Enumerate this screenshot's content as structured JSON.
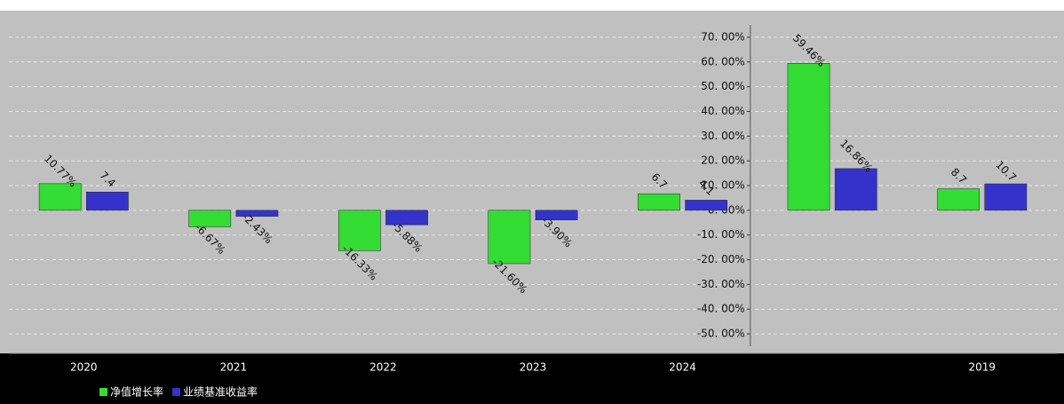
{
  "chart_data": {
    "type": "bar",
    "categories": [
      "2020",
      "2021",
      "2022",
      "2023",
      "2024",
      null,
      "2019"
    ],
    "series": [
      {
        "name": "净值增长率",
        "color": "#33dd33",
        "values": [
          10.77,
          -6.67,
          -16.33,
          -21.6,
          6.7,
          59.46,
          8.7
        ],
        "value_labels": [
          "10.77%",
          "-6.67%",
          "-16.33%",
          "-21.60%",
          "6.7",
          "59.46%",
          "8.7"
        ]
      },
      {
        "name": "业绩基准收益率",
        "color": "#3333cc",
        "values": [
          7.4,
          -2.43,
          -5.88,
          -3.9,
          4.1,
          16.86,
          10.7
        ],
        "value_labels": [
          "7.4",
          "-2.43%",
          "-5.88%",
          "-3.90%",
          "4.1",
          "16.86%",
          "10.7"
        ]
      }
    ],
    "ylim": [
      -55,
      75
    ],
    "yticks": [
      {
        "value": -50,
        "label": "-50. 00%"
      },
      {
        "value": -40,
        "label": "-40. 00%"
      },
      {
        "value": -30,
        "label": "-30. 00%"
      },
      {
        "value": -20,
        "label": "-20. 00%"
      },
      {
        "value": -10,
        "label": "-10. 00%"
      },
      {
        "value": 0,
        "label": "0. 00%"
      },
      {
        "value": 10,
        "label": "10. 00%"
      },
      {
        "value": 20,
        "label": "20. 00%"
      },
      {
        "value": 30,
        "label": "30. 00%"
      },
      {
        "value": 40,
        "label": "40. 00%"
      },
      {
        "value": 50,
        "label": "50. 00%"
      },
      {
        "value": 60,
        "label": "60. 00%"
      },
      {
        "value": 70,
        "label": "70. 00%"
      }
    ],
    "grid": true
  }
}
